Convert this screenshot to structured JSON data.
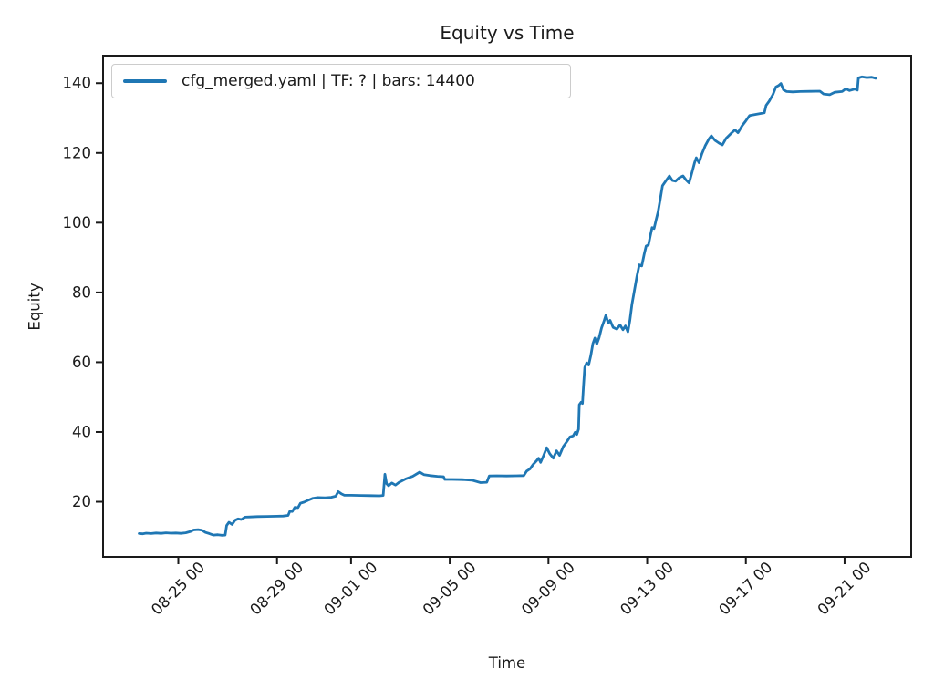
{
  "figure": {
    "title": "Equity vs Time",
    "xlabel": "Time",
    "ylabel": "Equity"
  },
  "legend": {
    "label": "cfg_merged.yaml | TF: ? | bars: 14400",
    "line_color": "#1f77b4"
  },
  "chart_data": {
    "type": "line",
    "title": "Equity vs Time",
    "xlabel": "Time",
    "ylabel": "Equity",
    "grid": false,
    "legend_position": "upper left",
    "legend_entries": [
      "cfg_merged.yaml | TF: ? | bars: 14400"
    ],
    "line_color": "#1f77b4",
    "axis_color": "#1a1a1a",
    "x_encoding_note": "x = calendar day index: Aug D -> D, Sep D -> 31+D, fraction of day = hour/24",
    "xlim": [
      21.95,
      54.7
    ],
    "ylim": [
      4.2,
      147.9
    ],
    "yticks": [
      20,
      40,
      60,
      80,
      100,
      120,
      140
    ],
    "xticks": [
      {
        "x": 25,
        "label": "08-25 00"
      },
      {
        "x": 29,
        "label": "08-29 00"
      },
      {
        "x": 32,
        "label": "09-01 00"
      },
      {
        "x": 36,
        "label": "09-05 00"
      },
      {
        "x": 40,
        "label": "09-09 00"
      },
      {
        "x": 44,
        "label": "09-13 00"
      },
      {
        "x": 48,
        "label": "09-17 00"
      },
      {
        "x": 52,
        "label": "09-21 00"
      }
    ],
    "series": [
      {
        "name": "cfg_merged.yaml | TF: ? | bars: 14400",
        "points": [
          [
            23.41,
            10.9
          ],
          [
            23.55,
            10.8
          ],
          [
            23.7,
            11.0
          ],
          [
            23.9,
            10.9
          ],
          [
            24.1,
            11.05
          ],
          [
            24.3,
            10.95
          ],
          [
            24.5,
            11.1
          ],
          [
            24.7,
            11.0
          ],
          [
            24.9,
            11.05
          ],
          [
            25.1,
            10.95
          ],
          [
            25.3,
            11.1
          ],
          [
            25.5,
            11.5
          ],
          [
            25.62,
            11.9
          ],
          [
            25.8,
            12.0
          ],
          [
            25.95,
            11.85
          ],
          [
            26.1,
            11.2
          ],
          [
            26.25,
            10.9
          ],
          [
            26.42,
            10.45
          ],
          [
            26.6,
            10.55
          ],
          [
            26.75,
            10.4
          ],
          [
            26.9,
            10.45
          ],
          [
            26.96,
            13.2
          ],
          [
            27.05,
            14.1
          ],
          [
            27.18,
            13.5
          ],
          [
            27.3,
            14.7
          ],
          [
            27.42,
            15.1
          ],
          [
            27.55,
            14.9
          ],
          [
            27.7,
            15.6
          ],
          [
            27.9,
            15.65
          ],
          [
            28.2,
            15.75
          ],
          [
            28.6,
            15.8
          ],
          [
            29.0,
            15.85
          ],
          [
            29.25,
            15.9
          ],
          [
            29.45,
            16.1
          ],
          [
            29.52,
            17.3
          ],
          [
            29.62,
            17.2
          ],
          [
            29.72,
            18.4
          ],
          [
            29.85,
            18.3
          ],
          [
            29.95,
            19.6
          ],
          [
            30.1,
            19.9
          ],
          [
            30.25,
            20.4
          ],
          [
            30.45,
            21.0
          ],
          [
            30.65,
            21.2
          ],
          [
            30.95,
            21.15
          ],
          [
            31.2,
            21.3
          ],
          [
            31.38,
            21.6
          ],
          [
            31.48,
            22.9
          ],
          [
            31.6,
            22.3
          ],
          [
            31.72,
            21.9
          ],
          [
            32.0,
            21.85
          ],
          [
            32.4,
            21.8
          ],
          [
            32.8,
            21.75
          ],
          [
            33.15,
            21.7
          ],
          [
            33.3,
            21.8
          ],
          [
            33.37,
            27.9
          ],
          [
            33.44,
            25.2
          ],
          [
            33.52,
            24.6
          ],
          [
            33.65,
            25.4
          ],
          [
            33.8,
            24.8
          ],
          [
            33.95,
            25.6
          ],
          [
            34.2,
            26.5
          ],
          [
            34.5,
            27.3
          ],
          [
            34.78,
            28.5
          ],
          [
            34.95,
            27.8
          ],
          [
            35.2,
            27.5
          ],
          [
            35.5,
            27.3
          ],
          [
            35.75,
            27.2
          ],
          [
            35.8,
            26.4
          ],
          [
            36.1,
            26.4
          ],
          [
            36.5,
            26.35
          ],
          [
            36.9,
            26.2
          ],
          [
            37.25,
            25.5
          ],
          [
            37.5,
            25.6
          ],
          [
            37.6,
            27.4
          ],
          [
            37.9,
            27.45
          ],
          [
            38.3,
            27.4
          ],
          [
            38.7,
            27.45
          ],
          [
            39.0,
            27.5
          ],
          [
            39.12,
            28.8
          ],
          [
            39.25,
            29.4
          ],
          [
            39.38,
            30.7
          ],
          [
            39.5,
            31.6
          ],
          [
            39.6,
            32.5
          ],
          [
            39.68,
            31.3
          ],
          [
            39.8,
            33.2
          ],
          [
            39.93,
            35.5
          ],
          [
            40.05,
            33.8
          ],
          [
            40.2,
            32.5
          ],
          [
            40.33,
            34.6
          ],
          [
            40.45,
            33.3
          ],
          [
            40.6,
            35.8
          ],
          [
            40.75,
            37.3
          ],
          [
            40.87,
            38.6
          ],
          [
            41.0,
            38.9
          ],
          [
            41.08,
            39.9
          ],
          [
            41.15,
            39.3
          ],
          [
            41.22,
            40.8
          ],
          [
            41.25,
            47.8
          ],
          [
            41.32,
            48.5
          ],
          [
            41.38,
            48.2
          ],
          [
            41.42,
            53.0
          ],
          [
            41.47,
            58.5
          ],
          [
            41.55,
            59.8
          ],
          [
            41.63,
            59.2
          ],
          [
            41.72,
            62.0
          ],
          [
            41.8,
            65.3
          ],
          [
            41.88,
            66.9
          ],
          [
            41.96,
            65.2
          ],
          [
            42.05,
            67.0
          ],
          [
            42.15,
            69.8
          ],
          [
            42.25,
            71.8
          ],
          [
            42.33,
            73.5
          ],
          [
            42.42,
            71.2
          ],
          [
            42.5,
            72.0
          ],
          [
            42.62,
            70.0
          ],
          [
            42.77,
            69.5
          ],
          [
            42.9,
            70.7
          ],
          [
            43.02,
            69.3
          ],
          [
            43.12,
            70.4
          ],
          [
            43.22,
            68.7
          ],
          [
            43.3,
            72.0
          ],
          [
            43.38,
            76.5
          ],
          [
            43.48,
            80.5
          ],
          [
            43.58,
            84.5
          ],
          [
            43.68,
            87.9
          ],
          [
            43.78,
            87.6
          ],
          [
            43.88,
            91.0
          ],
          [
            43.96,
            93.3
          ],
          [
            44.05,
            93.6
          ],
          [
            44.12,
            96.0
          ],
          [
            44.2,
            98.6
          ],
          [
            44.28,
            98.3
          ],
          [
            44.36,
            100.8
          ],
          [
            44.44,
            103.0
          ],
          [
            44.52,
            106.3
          ],
          [
            44.62,
            110.6
          ],
          [
            44.72,
            111.6
          ],
          [
            44.9,
            113.4
          ],
          [
            45.02,
            112.1
          ],
          [
            45.15,
            111.9
          ],
          [
            45.3,
            112.9
          ],
          [
            45.45,
            113.4
          ],
          [
            45.58,
            112.2
          ],
          [
            45.7,
            111.4
          ],
          [
            45.82,
            114.5
          ],
          [
            45.92,
            117.2
          ],
          [
            45.99,
            118.6
          ],
          [
            46.1,
            117.2
          ],
          [
            46.22,
            119.8
          ],
          [
            46.35,
            122.0
          ],
          [
            46.5,
            124.0
          ],
          [
            46.6,
            124.9
          ],
          [
            46.75,
            123.6
          ],
          [
            46.92,
            122.8
          ],
          [
            47.05,
            122.3
          ],
          [
            47.2,
            124.2
          ],
          [
            47.4,
            125.6
          ],
          [
            47.56,
            126.6
          ],
          [
            47.68,
            125.8
          ],
          [
            47.85,
            127.8
          ],
          [
            48.0,
            129.2
          ],
          [
            48.15,
            130.7
          ],
          [
            48.35,
            131.0
          ],
          [
            48.6,
            131.3
          ],
          [
            48.75,
            131.5
          ],
          [
            48.82,
            133.6
          ],
          [
            48.95,
            134.9
          ],
          [
            49.1,
            136.8
          ],
          [
            49.22,
            138.9
          ],
          [
            49.32,
            139.3
          ],
          [
            49.42,
            139.9
          ],
          [
            49.52,
            138.1
          ],
          [
            49.65,
            137.6
          ],
          [
            49.9,
            137.5
          ],
          [
            50.2,
            137.6
          ],
          [
            50.6,
            137.65
          ],
          [
            51.0,
            137.7
          ],
          [
            51.15,
            136.9
          ],
          [
            51.4,
            136.7
          ],
          [
            51.6,
            137.4
          ],
          [
            51.9,
            137.6
          ],
          [
            52.05,
            138.4
          ],
          [
            52.2,
            137.9
          ],
          [
            52.42,
            138.3
          ],
          [
            52.52,
            138.0
          ],
          [
            52.56,
            141.5
          ],
          [
            52.7,
            141.8
          ],
          [
            52.9,
            141.6
          ],
          [
            53.1,
            141.7
          ],
          [
            53.26,
            141.4
          ]
        ]
      }
    ]
  }
}
